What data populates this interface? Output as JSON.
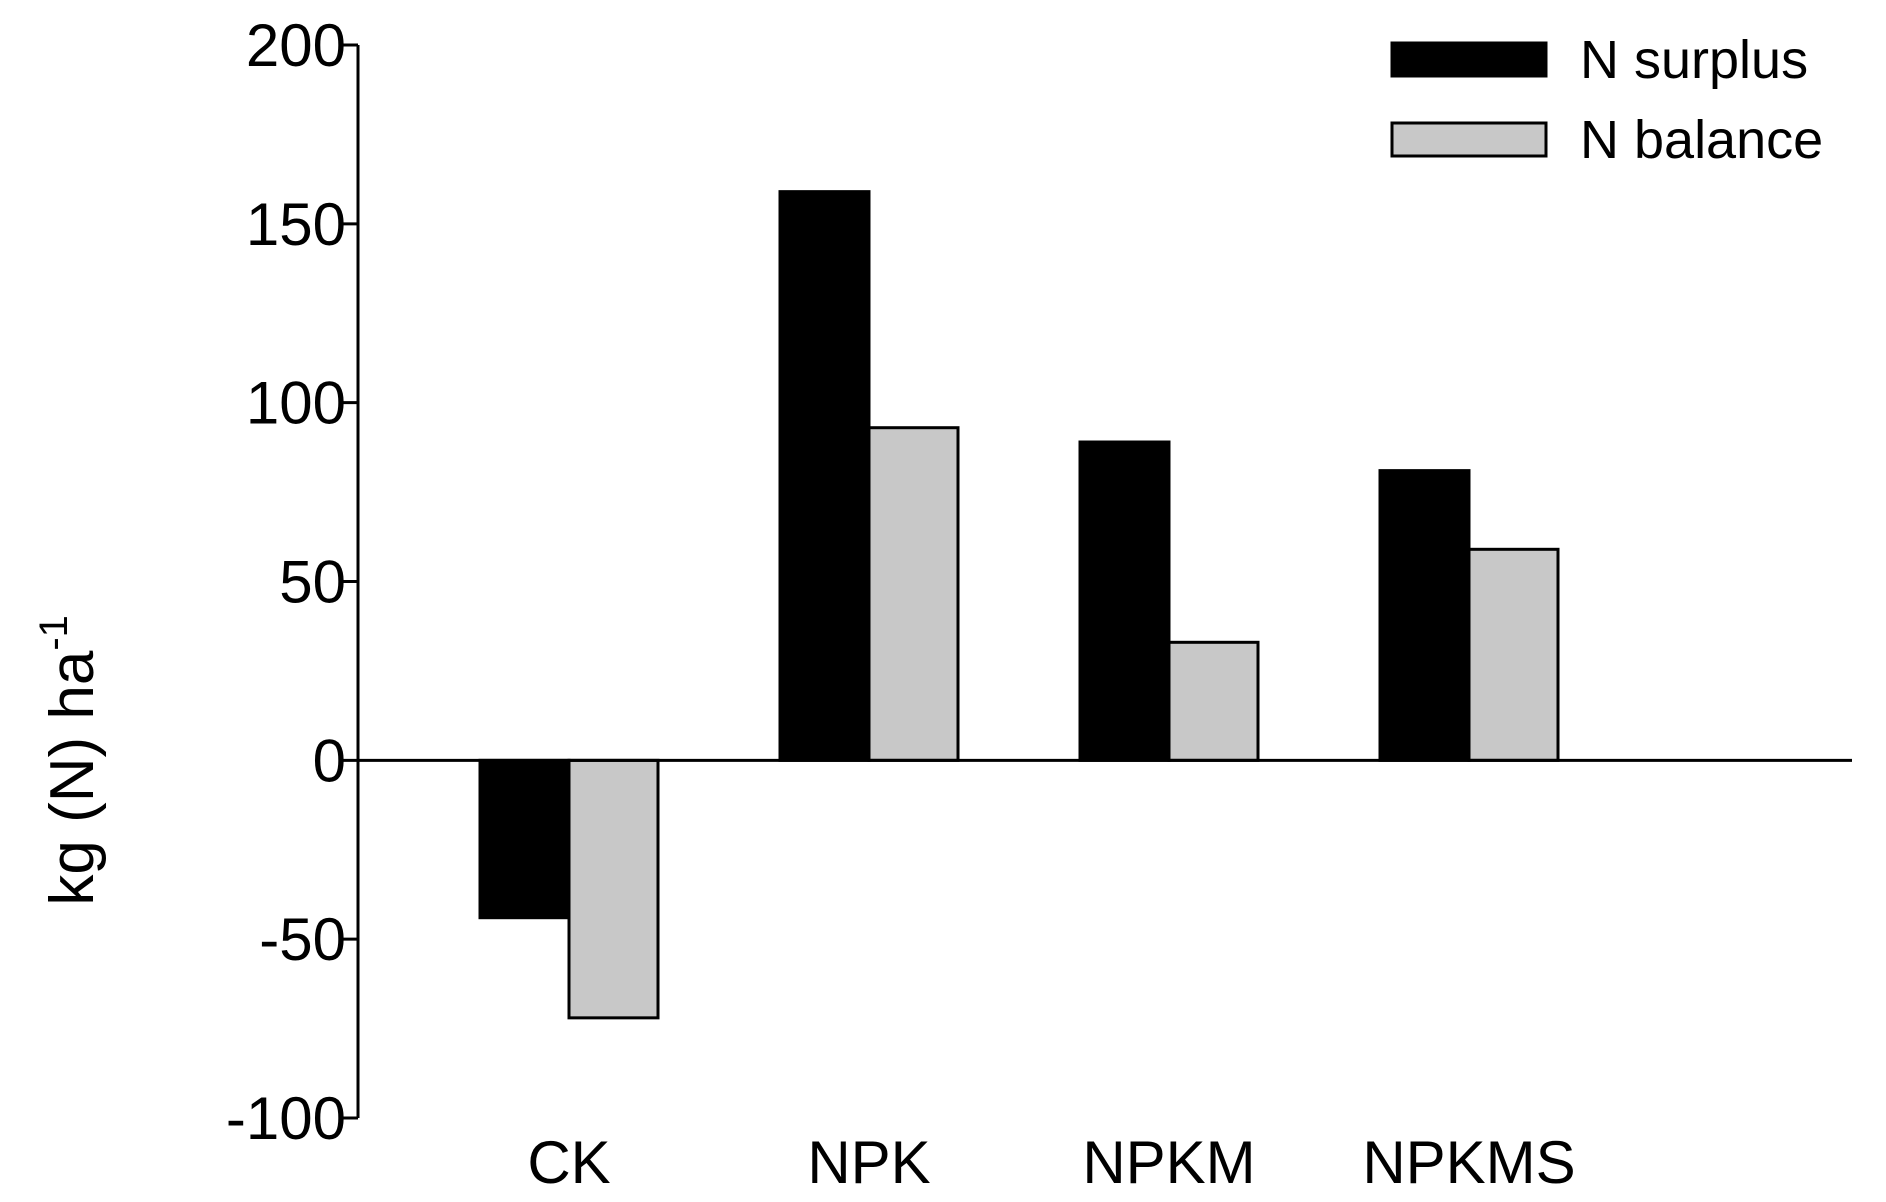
{
  "chart_data": {
    "type": "bar",
    "title": "",
    "xlabel": "",
    "ylabel": "kg (N) ha",
    "ylabel_superscript": "-1",
    "ylim": [
      -100,
      200
    ],
    "yticks": [
      200,
      150,
      100,
      50,
      0,
      -50,
      -100
    ],
    "ytick_labels": [
      "200",
      "150",
      "100",
      "50",
      "0",
      "-50",
      "-100"
    ],
    "categories": [
      "CK",
      "NPK",
      "NPKM",
      "NPKMS"
    ],
    "series": [
      {
        "name": "N surplus",
        "color": "#000000",
        "values": [
          -44,
          159,
          89,
          81
        ]
      },
      {
        "name": "N balance",
        "color": "#c8c8c8",
        "values": [
          -72,
          93,
          33,
          59
        ]
      }
    ],
    "legend": "top-right",
    "grid": false
  }
}
